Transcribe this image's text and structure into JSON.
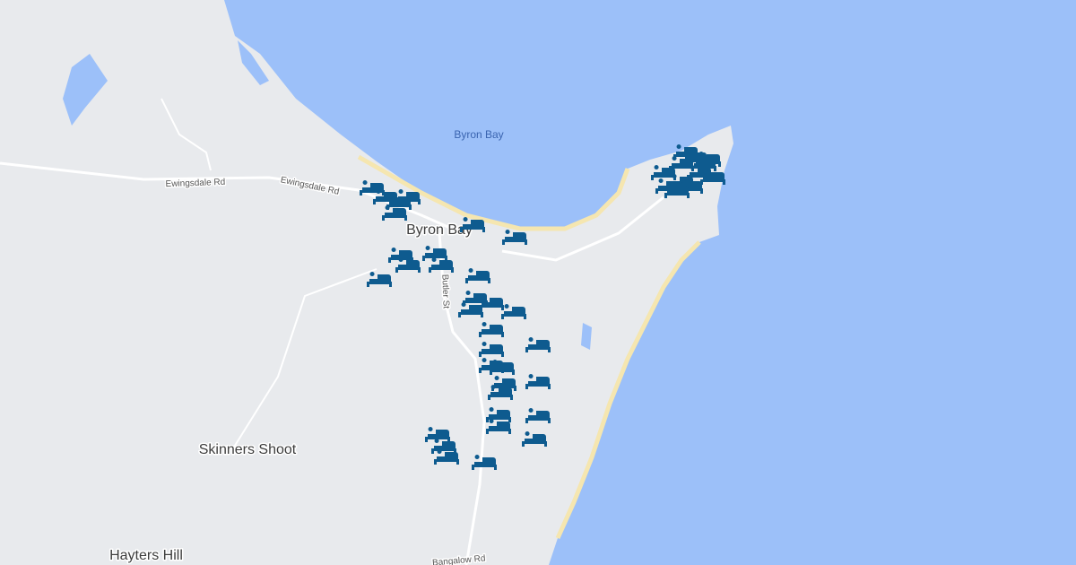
{
  "map": {
    "water_label": "Byron Bay",
    "places": [
      "Byron Bay",
      "Skinners Shoot",
      "Hayters Hill"
    ],
    "roads": [
      "Ewingsdale Rd",
      "Ewingsdale Rd",
      "Butler St",
      "Bangalow Rd"
    ]
  }
}
